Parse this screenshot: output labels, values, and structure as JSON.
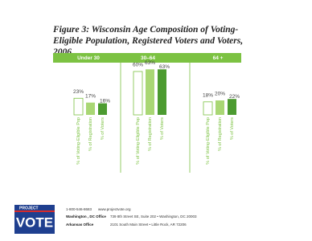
{
  "chart_data": {
    "type": "bar",
    "title": "Figure 3: Wisconsin Age Composition of Voting-Eligible Population, Registered Voters and Voters, 2006",
    "categories": [
      "Under 30",
      "30–64",
      "64 +"
    ],
    "series": [
      {
        "name": "% of Voting-Eligible Pop",
        "color": "#ffffff",
        "values": [
          23,
          60,
          18
        ],
        "value_labels": [
          "23%",
          "60%",
          "18%"
        ]
      },
      {
        "name": "% of Registration",
        "color": "#a9d774",
        "values": [
          17,
          63,
          20
        ],
        "value_labels": [
          "17%",
          "63%",
          "20%"
        ]
      },
      {
        "name": "% of Voters",
        "color": "#4c9b30",
        "values": [
          16,
          63,
          22
        ],
        "value_labels": [
          "16%",
          "63%",
          "22%"
        ]
      }
    ]
  },
  "logo": {
    "top": "PROJECT",
    "main": "VOTE"
  },
  "footer": {
    "phone": "1-800-546-8683",
    "website": "www.projectvote.org",
    "offices": [
      {
        "name": "Washington , DC Office",
        "address": "739 8th Street SE, Suite 202 • Washington, DC 20003"
      },
      {
        "name": "Arkansas Office",
        "address": "2101 South Main Street • Little Rock, AR 72206"
      }
    ]
  }
}
